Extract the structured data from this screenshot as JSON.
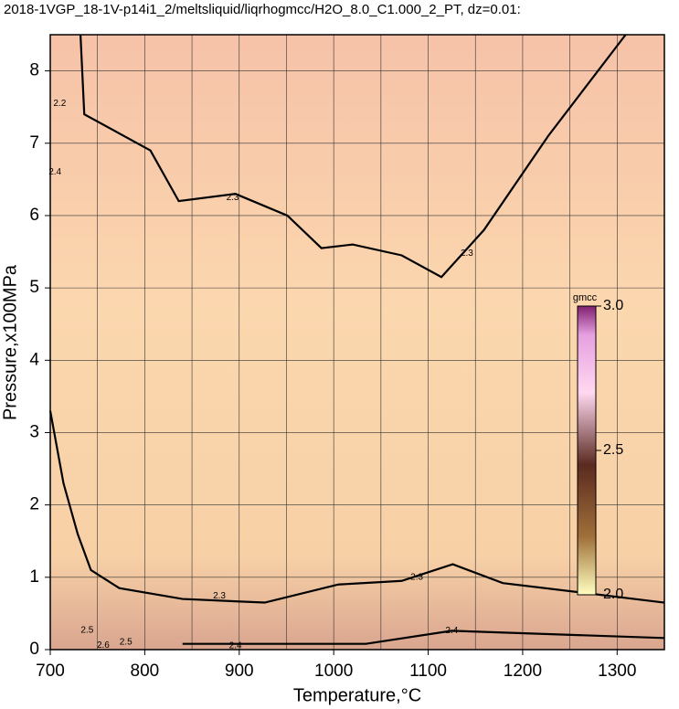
{
  "chart_data": {
    "type": "contour",
    "title": "2018-1VGP_18-1V-p14i1_2/meltsliquid/liqrhogmcc/H2O_8.0_C1.000_2_PT, dz=0.01:",
    "xlabel": "Temperature,°C",
    "ylabel": "Pressure,x100MPa",
    "xlim": [
      700,
      1350
    ],
    "ylim": [
      0,
      8.5
    ],
    "xticks": [
      700,
      800,
      900,
      1000,
      1100,
      1200,
      1300
    ],
    "yticks": [
      0,
      1,
      2,
      3,
      4,
      5,
      6,
      7,
      8
    ],
    "xminorticks": [
      750,
      850,
      950,
      1050,
      1150,
      1250
    ],
    "grid": true,
    "contours": [
      {
        "level": 2.3,
        "x": [
          732,
          736,
          806,
          836,
          896,
          951,
          987,
          1020,
          1072,
          1114,
          1159,
          1227,
          1309
        ],
        "y": [
          8.5,
          7.4,
          6.9,
          6.2,
          6.3,
          6.0,
          5.55,
          5.6,
          5.45,
          5.15,
          5.8,
          7.1,
          8.5
        ]
      },
      {
        "level": 2.3,
        "x": [
          700,
          714,
          729,
          743,
          773,
          840,
          927,
          1005,
          1072,
          1126,
          1179,
          1350
        ],
        "y": [
          3.3,
          2.3,
          1.6,
          1.1,
          0.85,
          0.7,
          0.65,
          0.9,
          0.95,
          1.18,
          0.92,
          0.65
        ]
      },
      {
        "level": 2.4,
        "x": [
          840,
          1034,
          1125,
          1350
        ],
        "y": [
          0.08,
          0.08,
          0.26,
          0.16
        ]
      }
    ],
    "annotations": [
      {
        "text": "2.2",
        "x": 710,
        "y": 7.55
      },
      {
        "text": "2.4",
        "x": 705,
        "y": 6.6
      },
      {
        "text": "2.3",
        "x": 893,
        "y": 6.25
      },
      {
        "text": "2.3",
        "x": 1141,
        "y": 5.48
      },
      {
        "text": "2.3",
        "x": 879,
        "y": 0.74
      },
      {
        "text": "2.3",
        "x": 1088,
        "y": 1.0
      },
      {
        "text": "2.4",
        "x": 896,
        "y": 0.05
      },
      {
        "text": "2.4",
        "x": 1125,
        "y": 0.26
      },
      {
        "text": "2.5",
        "x": 739,
        "y": 0.27
      },
      {
        "text": "2.6",
        "x": 756,
        "y": 0.06
      },
      {
        "text": "2.5",
        "x": 780,
        "y": 0.1
      }
    ],
    "colorbar": {
      "label": "gmcc",
      "lim": [
        2.0,
        3.0
      ],
      "ticks": [
        {
          "value": 2,
          "label": "2.0"
        },
        {
          "value": 2.5,
          "label": "2.5"
        },
        {
          "value": 3,
          "label": "3.0"
        }
      ]
    }
  }
}
